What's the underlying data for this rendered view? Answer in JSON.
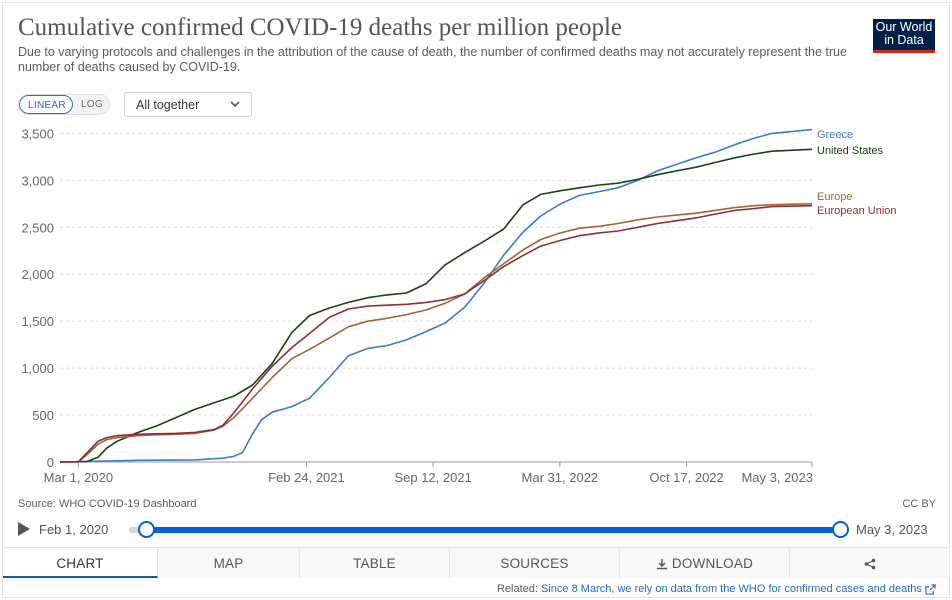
{
  "header": {
    "title": "Cumulative confirmed COVID-19 deaths per million people",
    "subtitle": "Due to varying protocols and challenges in the attribution of the cause of death, the number of confirmed deaths may not accurately represent the true number of deaths caused by COVID-19.",
    "logo_line1": "Our World",
    "logo_line2": "in Data"
  },
  "controls": {
    "linear_label": "LINEAR",
    "log_label": "LOG",
    "facet_select": "All together"
  },
  "chart_data": {
    "type": "line",
    "title": "Cumulative confirmed COVID-19 deaths per million people",
    "xlabel": "",
    "ylabel": "",
    "ylim": [
      0,
      3600
    ],
    "yticks": [
      0,
      500,
      1000,
      1500,
      2000,
      2500,
      3000,
      3500
    ],
    "ytick_labels": [
      "0",
      "500",
      "1,000",
      "1,500",
      "2,000",
      "2,500",
      "3,000",
      "3,500"
    ],
    "xlim": [
      "2020-02-01",
      "2023-05-03"
    ],
    "xtick_labels": [
      {
        "date": "2020-03-01",
        "label": "Mar 1, 2020"
      },
      {
        "date": "2021-02-24",
        "label": "Feb 24, 2021"
      },
      {
        "date": "2021-09-12",
        "label": "Sep 12, 2021"
      },
      {
        "date": "2022-03-31",
        "label": "Mar 31, 2022"
      },
      {
        "date": "2022-10-17",
        "label": "Oct 17, 2022"
      },
      {
        "date": "2023-05-03",
        "label": "May 3, 2023"
      }
    ],
    "grid": true,
    "series": [
      {
        "name": "Greece",
        "color": "#3a7dc9",
        "points": [
          [
            "2020-02-01",
            0
          ],
          [
            "2020-03-01",
            3
          ],
          [
            "2020-06-01",
            18
          ],
          [
            "2020-09-01",
            22
          ],
          [
            "2020-10-15",
            40
          ],
          [
            "2020-11-01",
            60
          ],
          [
            "2020-11-15",
            100
          ],
          [
            "2020-12-01",
            300
          ],
          [
            "2020-12-15",
            450
          ],
          [
            "2021-01-01",
            530
          ],
          [
            "2021-02-01",
            590
          ],
          [
            "2021-03-01",
            680
          ],
          [
            "2021-04-01",
            900
          ],
          [
            "2021-05-01",
            1130
          ],
          [
            "2021-06-01",
            1210
          ],
          [
            "2021-07-01",
            1240
          ],
          [
            "2021-08-01",
            1300
          ],
          [
            "2021-09-01",
            1390
          ],
          [
            "2021-10-01",
            1480
          ],
          [
            "2021-11-01",
            1650
          ],
          [
            "2021-12-01",
            1900
          ],
          [
            "2022-01-01",
            2200
          ],
          [
            "2022-02-01",
            2450
          ],
          [
            "2022-03-01",
            2620
          ],
          [
            "2022-04-01",
            2750
          ],
          [
            "2022-05-01",
            2840
          ],
          [
            "2022-06-01",
            2880
          ],
          [
            "2022-07-01",
            2920
          ],
          [
            "2022-08-01",
            3000
          ],
          [
            "2022-09-01",
            3100
          ],
          [
            "2022-10-01",
            3170
          ],
          [
            "2022-11-01",
            3240
          ],
          [
            "2022-12-01",
            3300
          ],
          [
            "2023-01-01",
            3380
          ],
          [
            "2023-02-01",
            3450
          ],
          [
            "2023-03-01",
            3500
          ],
          [
            "2023-05-03",
            3540
          ]
        ]
      },
      {
        "name": "United States",
        "color": "#1a4314",
        "points": [
          [
            "2020-02-01",
            0
          ],
          [
            "2020-03-15",
            5
          ],
          [
            "2020-04-01",
            50
          ],
          [
            "2020-04-15",
            150
          ],
          [
            "2020-05-01",
            220
          ],
          [
            "2020-06-01",
            310
          ],
          [
            "2020-07-01",
            380
          ],
          [
            "2020-08-01",
            470
          ],
          [
            "2020-09-01",
            560
          ],
          [
            "2020-10-01",
            630
          ],
          [
            "2020-11-01",
            700
          ],
          [
            "2020-12-01",
            820
          ],
          [
            "2021-01-01",
            1050
          ],
          [
            "2021-02-01",
            1380
          ],
          [
            "2021-03-01",
            1560
          ],
          [
            "2021-04-01",
            1640
          ],
          [
            "2021-05-01",
            1700
          ],
          [
            "2021-06-01",
            1750
          ],
          [
            "2021-07-01",
            1780
          ],
          [
            "2021-08-01",
            1800
          ],
          [
            "2021-09-01",
            1900
          ],
          [
            "2021-10-01",
            2100
          ],
          [
            "2021-11-01",
            2230
          ],
          [
            "2021-12-01",
            2350
          ],
          [
            "2022-01-01",
            2480
          ],
          [
            "2022-02-01",
            2740
          ],
          [
            "2022-03-01",
            2850
          ],
          [
            "2022-04-01",
            2890
          ],
          [
            "2022-05-01",
            2920
          ],
          [
            "2022-06-01",
            2950
          ],
          [
            "2022-07-01",
            2970
          ],
          [
            "2022-08-01",
            3010
          ],
          [
            "2022-09-01",
            3060
          ],
          [
            "2022-10-01",
            3100
          ],
          [
            "2022-11-01",
            3140
          ],
          [
            "2022-12-01",
            3190
          ],
          [
            "2023-01-01",
            3240
          ],
          [
            "2023-02-01",
            3280
          ],
          [
            "2023-03-01",
            3310
          ],
          [
            "2023-05-03",
            3330
          ]
        ]
      },
      {
        "name": "Europe",
        "color": "#a26532",
        "points": [
          [
            "2020-02-01",
            0
          ],
          [
            "2020-03-01",
            2
          ],
          [
            "2020-03-15",
            80
          ],
          [
            "2020-04-01",
            190
          ],
          [
            "2020-04-15",
            240
          ],
          [
            "2020-05-01",
            260
          ],
          [
            "2020-06-01",
            280
          ],
          [
            "2020-07-01",
            290
          ],
          [
            "2020-08-01",
            295
          ],
          [
            "2020-09-01",
            305
          ],
          [
            "2020-10-01",
            340
          ],
          [
            "2020-10-15",
            380
          ],
          [
            "2020-11-01",
            470
          ],
          [
            "2020-12-01",
            680
          ],
          [
            "2021-01-01",
            900
          ],
          [
            "2021-02-01",
            1100
          ],
          [
            "2021-03-01",
            1200
          ],
          [
            "2021-04-01",
            1320
          ],
          [
            "2021-05-01",
            1440
          ],
          [
            "2021-06-01",
            1500
          ],
          [
            "2021-07-01",
            1530
          ],
          [
            "2021-08-01",
            1570
          ],
          [
            "2021-09-01",
            1620
          ],
          [
            "2021-10-01",
            1690
          ],
          [
            "2021-11-01",
            1790
          ],
          [
            "2021-12-01",
            1960
          ],
          [
            "2022-01-01",
            2110
          ],
          [
            "2022-02-01",
            2260
          ],
          [
            "2022-03-01",
            2370
          ],
          [
            "2022-04-01",
            2440
          ],
          [
            "2022-05-01",
            2490
          ],
          [
            "2022-06-01",
            2510
          ],
          [
            "2022-07-01",
            2540
          ],
          [
            "2022-08-01",
            2580
          ],
          [
            "2022-09-01",
            2610
          ],
          [
            "2022-10-01",
            2630
          ],
          [
            "2022-11-01",
            2650
          ],
          [
            "2022-12-01",
            2680
          ],
          [
            "2023-01-01",
            2710
          ],
          [
            "2023-02-01",
            2730
          ],
          [
            "2023-03-01",
            2740
          ],
          [
            "2023-05-03",
            2750
          ]
        ]
      },
      {
        "name": "European Union",
        "color": "#883039",
        "points": [
          [
            "2020-02-01",
            0
          ],
          [
            "2020-03-01",
            2
          ],
          [
            "2020-03-15",
            100
          ],
          [
            "2020-04-01",
            220
          ],
          [
            "2020-04-15",
            260
          ],
          [
            "2020-05-01",
            280
          ],
          [
            "2020-06-01",
            295
          ],
          [
            "2020-07-01",
            300
          ],
          [
            "2020-08-01",
            305
          ],
          [
            "2020-09-01",
            315
          ],
          [
            "2020-10-01",
            345
          ],
          [
            "2020-10-15",
            390
          ],
          [
            "2020-11-01",
            520
          ],
          [
            "2020-12-01",
            780
          ],
          [
            "2021-01-01",
            1020
          ],
          [
            "2021-02-01",
            1220
          ],
          [
            "2021-03-01",
            1370
          ],
          [
            "2021-04-01",
            1540
          ],
          [
            "2021-05-01",
            1630
          ],
          [
            "2021-06-01",
            1660
          ],
          [
            "2021-07-01",
            1670
          ],
          [
            "2021-08-01",
            1680
          ],
          [
            "2021-09-01",
            1700
          ],
          [
            "2021-10-01",
            1730
          ],
          [
            "2021-11-01",
            1790
          ],
          [
            "2021-12-01",
            1930
          ],
          [
            "2022-01-01",
            2080
          ],
          [
            "2022-02-01",
            2200
          ],
          [
            "2022-03-01",
            2300
          ],
          [
            "2022-04-01",
            2360
          ],
          [
            "2022-05-01",
            2410
          ],
          [
            "2022-06-01",
            2440
          ],
          [
            "2022-07-01",
            2460
          ],
          [
            "2022-08-01",
            2500
          ],
          [
            "2022-09-01",
            2540
          ],
          [
            "2022-10-01",
            2570
          ],
          [
            "2022-11-01",
            2600
          ],
          [
            "2022-12-01",
            2640
          ],
          [
            "2023-01-01",
            2680
          ],
          [
            "2023-02-01",
            2700
          ],
          [
            "2023-03-01",
            2720
          ],
          [
            "2023-05-03",
            2730
          ]
        ]
      }
    ]
  },
  "footer": {
    "source": "Source: WHO COVID-19 Dashboard",
    "license": "CC BY"
  },
  "timeline": {
    "start_label": "Feb 1, 2020",
    "end_label": "May 3, 2023",
    "start_fraction": 0.0,
    "end_fraction": 1.0
  },
  "tabs": [
    {
      "label": "CHART",
      "active": true
    },
    {
      "label": "MAP",
      "active": false
    },
    {
      "label": "TABLE",
      "active": false
    },
    {
      "label": "SOURCES",
      "active": false
    },
    {
      "label": "DOWNLOAD",
      "active": false
    }
  ],
  "related": {
    "prefix": "Related: ",
    "link_text": "Since 8 March, we rely on data from the WHO for confirmed cases and deaths"
  },
  "colors": {
    "accent": "#0061d4",
    "link": "#2c6bb8",
    "logo_bg": "#002147",
    "logo_bar": "#ce261e"
  }
}
